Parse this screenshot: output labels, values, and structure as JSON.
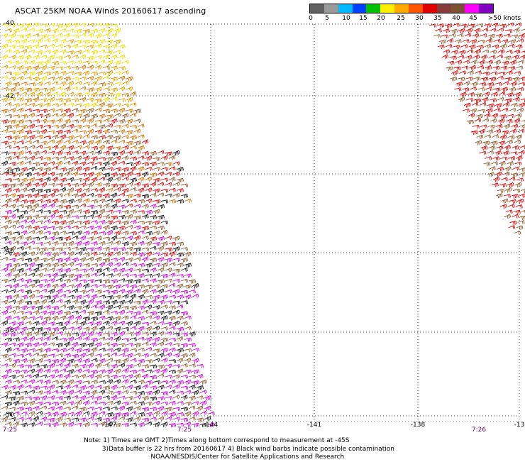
{
  "title": "ASCAT 25KM NOAA Winds 20160617 ascending",
  "legend": {
    "colors": [
      "#606060",
      "#9a9a9a",
      "#00b8ff",
      "#0040ff",
      "#00c000",
      "#ffee00",
      "#ffaa00",
      "#ff5500",
      "#e00000",
      "#8b3a3a",
      "#7a5230",
      "#ff00ff",
      "#8000c0"
    ],
    "labels": [
      "0",
      "5",
      "10",
      "15",
      "20",
      "25",
      "30",
      "35",
      "40",
      "45",
      ">50 knots"
    ]
  },
  "axes": {
    "lat_labels": [
      "-40",
      "-42",
      "-44",
      "-46",
      "-48",
      "-50"
    ],
    "lon_labels": [
      "-147",
      "-144",
      "-141",
      "-138",
      "-13"
    ],
    "times": [
      "7:25",
      "7:25",
      "7:26"
    ]
  },
  "notes": [
    "Note: 1) Times are GMT 2)Times along bottom correspond to measurement at -45S",
    "3)Data buffer is 22 hrs from 20160617 4) Black wind barbs indicate possible contamination",
    "NOAA/NESDIS/Center for Satellite Applications and Research"
  ],
  "barb_colors": {
    "yellow": "#f0e000",
    "orange": "#e0a000",
    "dark_orange": "#d07000",
    "red": "#dd0000",
    "brown": "#8b5a2b",
    "black": "#101010",
    "magenta": "#cc00dd"
  }
}
